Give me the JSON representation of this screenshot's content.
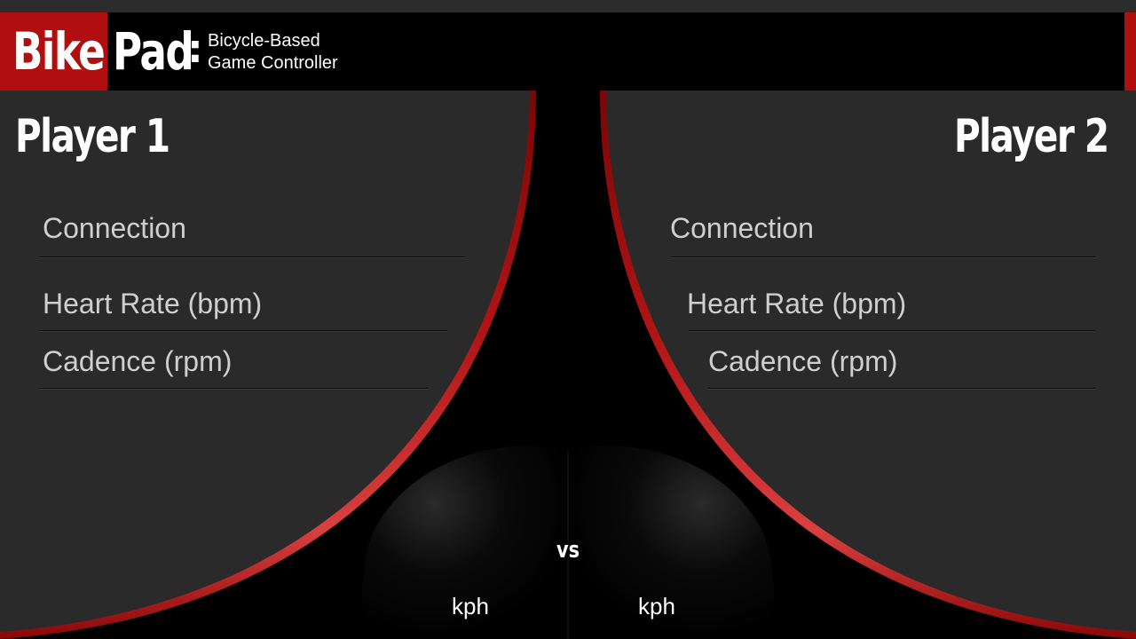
{
  "header": {
    "logo_part1": "Bike",
    "logo_part2": "Pad",
    "logo_colon": ":",
    "tagline_line1": "Bicycle-Based",
    "tagline_line2": "Game Controller"
  },
  "player1": {
    "title": "Player 1",
    "connection_label": "Connection",
    "heart_rate_label": "Heart Rate (bpm)",
    "cadence_label": "Cadence (rpm)",
    "speed_unit": "kph"
  },
  "player2": {
    "title": "Player 2",
    "connection_label": "Connection",
    "heart_rate_label": "Heart Rate (bpm)",
    "cadence_label": "Cadence (rpm)",
    "speed_unit": "kph"
  },
  "center": {
    "vs_label": "vs"
  },
  "colors": {
    "accent_red": "#b10f0f",
    "panel_gray": "#2a2a2a",
    "background": "#000000",
    "text_primary": "#ffffff",
    "text_secondary": "#cfcfcf"
  }
}
